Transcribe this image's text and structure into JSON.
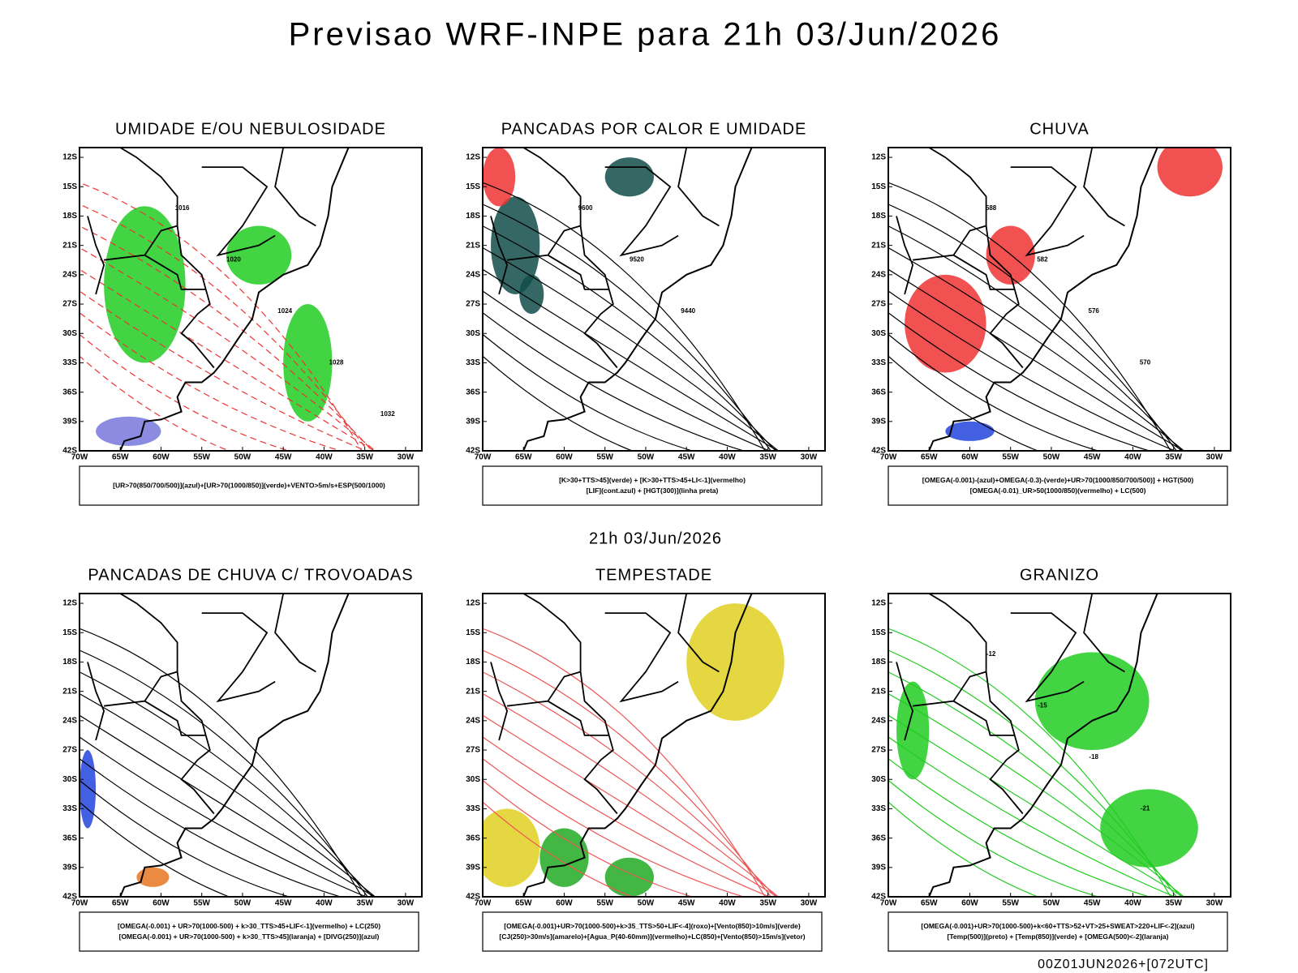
{
  "title": "Previsao WRF-INPE  para 21h 03/Jun/2026",
  "subtitle": "21h 03/Jun/2026",
  "footer": "00Z01JUN2026+[072UTC]",
  "lat_labels": [
    "12S",
    "15S",
    "18S",
    "21S",
    "24S",
    "27S",
    "30S",
    "33S",
    "36S",
    "39S",
    "42S"
  ],
  "lon_labels": [
    "70W",
    "65W",
    "60W",
    "55W",
    "50W",
    "45W",
    "40W",
    "35W",
    "30W"
  ],
  "panels": [
    {
      "title": "UMIDADE E/OU NEBULOSIDADE",
      "legend": [
        "[UR>70(850/700/500)](azul)+[UR>70(1000/850)](verde)+VENTO>5m/s+ESP(500/1000)"
      ],
      "contour_labels": [
        "1016",
        "1020",
        "1024",
        "1028",
        "1032"
      ]
    },
    {
      "title": "PANCADAS POR CALOR E UMIDADE",
      "legend": [
        "[K>30+TTS>45](verde) + [K>30+TTS>45+LI<-1](vermelho)",
        "[LIF](cont.azul) + [HGT(300)](linha preta)"
      ],
      "contour_labels": [
        "9600",
        "9520",
        "9440"
      ]
    },
    {
      "title": "CHUVA",
      "legend": [
        "[OMEGA(-0.001)-(azul)+OMEGA(-0.3)-(verde)+UR>70(1000/850/700/500)] + HGT(500)",
        "[OMEGA(-0.01)_UR>50(1000/850)(vermelho) + LC(500)"
      ],
      "contour_labels": [
        "588",
        "582",
        "576",
        "570"
      ]
    },
    {
      "title": "PANCADAS DE CHUVA C/ TROVOADAS",
      "legend": [
        "[OMEGA(-0.001) + UR>70(1000-500) + k>30_TTS>45+LIF<-1](vermelho) + LC(250)",
        "[OMEGA(-0.001) + UR>70(1000-500) + k>30_TTS>45](laranja) + [DIVG(250)](azul)"
      ],
      "contour_labels": []
    },
    {
      "title": "TEMPESTADE",
      "legend": [
        "[OMEGA(-0.001)+UR>70(1000-500)+k>35_TTS>50+LIF<-4](roxo)+[Vento(850)>10m/s](verde)",
        "[CJ(250)>30m/s](amarelo)+[Agua_P(40-60mm)](vermelho)+LC(850)+[Vento(850)>15m/s](vetor)"
      ],
      "contour_labels": []
    },
    {
      "title": "GRANIZO",
      "legend": [
        "[OMEGA(-0.001)+UR>70(1000-500)+k<60+TTS>52+VT>25+SWEAT>220+LIF<-2](azul)",
        "[Temp(500)](preto) + [Temp(850)](verde) + [OMEGA(500)<-2](laranja)"
      ],
      "contour_labels": [
        "-12",
        "-15",
        "-18",
        "-21"
      ]
    }
  ]
}
